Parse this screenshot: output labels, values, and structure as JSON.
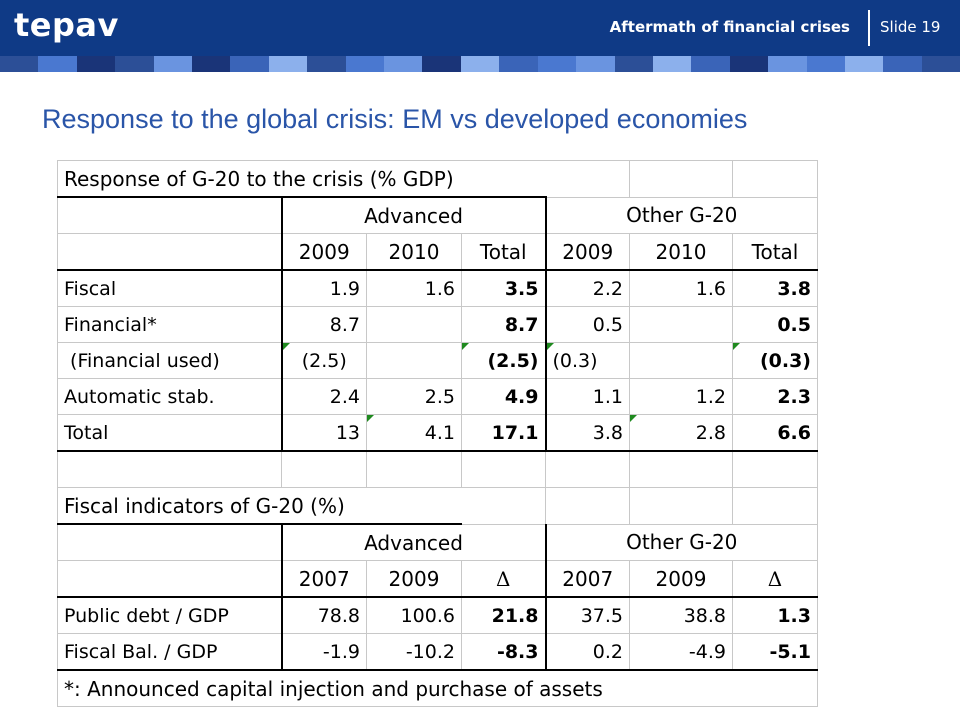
{
  "header": {
    "logo": "tepav",
    "title": "Aftermath of financial crises",
    "slide": "Slide 19",
    "stripe_colors": [
      "#2c4f97",
      "#4a78d0",
      "#1a3478",
      "#2c4f97",
      "#6a94e0",
      "#1a3478",
      "#3a64b8",
      "#8cb0ec",
      "#2c4f97",
      "#4a78d0",
      "#6a94e0",
      "#1a3478",
      "#8cb0ec",
      "#3a64b8",
      "#4a78d0",
      "#6a94e0",
      "#2c4f97",
      "#8cb0ec",
      "#3a64b8",
      "#1a3478",
      "#6a94e0",
      "#4a78d0",
      "#8cb0ec",
      "#3a64b8",
      "#2c4f97"
    ]
  },
  "slide_title": "Response to the global crisis: EM vs developed economies",
  "table1": {
    "title": "Response of G-20 to the crisis (% GDP)",
    "group_advanced": "Advanced",
    "group_other": "Other G-20",
    "years": [
      "2009",
      "2010",
      "Total",
      "2009",
      "2010",
      "Total"
    ],
    "rows": [
      {
        "label": "Fiscal",
        "values": [
          "1.9",
          "1.6",
          "3.5",
          "2.2",
          "1.6",
          "3.8"
        ]
      },
      {
        "label": "Financial*",
        "values": [
          "8.7",
          "",
          "8.7",
          "0.5",
          "",
          "0.5"
        ]
      },
      {
        "label": " (Financial used)",
        "values": [
          "(2.5)",
          "",
          "(2.5)",
          "(0.3)",
          "",
          "(0.3)"
        ]
      },
      {
        "label": "Automatic stab.",
        "values": [
          "2.4",
          "2.5",
          "4.9",
          "1.1",
          "1.2",
          "2.3"
        ]
      },
      {
        "label": "Total",
        "values": [
          "13",
          "4.1",
          "17.1",
          "3.8",
          "2.8",
          "6.6"
        ]
      }
    ]
  },
  "table2": {
    "title": "Fiscal indicators of G-20 (%)",
    "group_advanced": "Advanced",
    "group_other": "Other G-20",
    "years": [
      "2007",
      "2009",
      "Δ",
      "2007",
      "2009",
      "Δ"
    ],
    "rows": [
      {
        "label": "Public debt / GDP",
        "values": [
          "78.8",
          "100.6",
          "21.8",
          "37.5",
          "38.8",
          "1.3"
        ]
      },
      {
        "label": "Fiscal Bal. / GDP",
        "values": [
          "-1.9",
          "-10.2",
          "-8.3",
          "0.2",
          "-4.9",
          "-5.1"
        ]
      }
    ]
  },
  "footnote": "*: Announced capital injection and purchase of assets"
}
